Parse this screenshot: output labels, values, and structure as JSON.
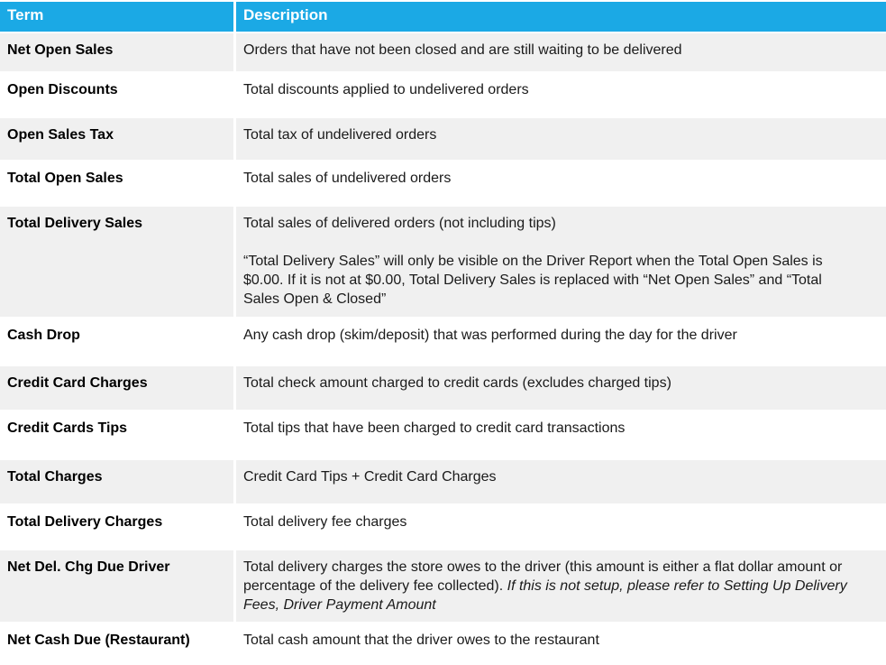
{
  "colors": {
    "header_bg": "#1BA9E5",
    "header_text": "#FFFFFF",
    "row_alt_bg": "#F0F0F0",
    "row_bg": "#FFFFFF",
    "body_text": "#1A1A1A"
  },
  "table": {
    "header": {
      "term": "Term",
      "description": "Description"
    },
    "rows": [
      {
        "term": "Net Open Sales",
        "paragraphs": [
          [
            {
              "text": "Orders that have not been closed and are still waiting to be delivered"
            }
          ]
        ]
      },
      {
        "term": "Open Discounts",
        "paragraphs": [
          [
            {
              "text": "Total discounts applied to undelivered orders"
            }
          ]
        ]
      },
      {
        "term": "Open Sales Tax",
        "paragraphs": [
          [
            {
              "text": "Total tax of undelivered orders"
            }
          ]
        ]
      },
      {
        "term": "Total Open Sales",
        "paragraphs": [
          [
            {
              "text": "Total sales of undelivered orders"
            }
          ]
        ]
      },
      {
        "term": "Total Delivery Sales",
        "paragraphs": [
          [
            {
              "text": "Total sales of delivered orders (not including tips)"
            }
          ],
          [
            {
              "text": "“Total Delivery Sales” will only be visible on the Driver Report when the Total Open Sales is $0.00. If it is not at $0.00, Total Delivery Sales is replaced with “Net Open Sales” and “Total Sales Open & Closed”"
            }
          ]
        ]
      },
      {
        "term": "Cash Drop",
        "paragraphs": [
          [
            {
              "text": "Any cash drop (skim/deposit) that was performed during the day for the driver"
            }
          ]
        ]
      },
      {
        "term": "Credit Card Charges",
        "paragraphs": [
          [
            {
              "text": "Total check amount charged to credit cards (excludes charged tips)"
            }
          ]
        ]
      },
      {
        "term": "Credit Cards Tips",
        "paragraphs": [
          [
            {
              "text": "Total tips that have been charged to credit card transactions"
            }
          ]
        ]
      },
      {
        "term": "Total Charges",
        "paragraphs": [
          [
            {
              "text": "Credit Card Tips + Credit Card Charges"
            }
          ]
        ]
      },
      {
        "term": "Total Delivery Charges",
        "paragraphs": [
          [
            {
              "text": "Total delivery fee charges"
            }
          ]
        ]
      },
      {
        "term": "Net Del. Chg Due Driver",
        "paragraphs": [
          [
            {
              "text": "Total delivery charges the store owes to the driver (this amount is either a flat dollar amount or percentage of the delivery fee collected). "
            },
            {
              "text": "If this is not setup, please refer to Setting Up Delivery Fees, Driver Payment Amount",
              "italic": true
            }
          ]
        ]
      },
      {
        "term": "Net Cash Due (Restaurant)",
        "paragraphs": [
          [
            {
              "text": "Total cash amount that the driver owes to the restaurant"
            }
          ]
        ]
      }
    ]
  }
}
